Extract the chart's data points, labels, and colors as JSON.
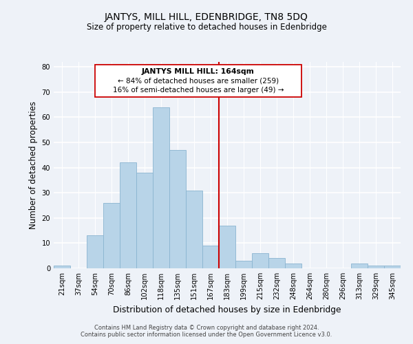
{
  "title": "JANTYS, MILL HILL, EDENBRIDGE, TN8 5DQ",
  "subtitle": "Size of property relative to detached houses in Edenbridge",
  "xlabel": "Distribution of detached houses by size in Edenbridge",
  "ylabel": "Number of detached properties",
  "bar_color": "#b8d4e8",
  "bar_edge_color": "#8ab4d0",
  "background_color": "#eef2f8",
  "grid_color": "#ffffff",
  "categories": [
    "21sqm",
    "37sqm",
    "54sqm",
    "70sqm",
    "86sqm",
    "102sqm",
    "118sqm",
    "135sqm",
    "151sqm",
    "167sqm",
    "183sqm",
    "199sqm",
    "215sqm",
    "232sqm",
    "248sqm",
    "264sqm",
    "280sqm",
    "296sqm",
    "313sqm",
    "329sqm",
    "345sqm"
  ],
  "values": [
    1,
    0,
    13,
    26,
    42,
    38,
    64,
    47,
    31,
    9,
    17,
    3,
    6,
    4,
    2,
    0,
    0,
    0,
    2,
    1,
    1
  ],
  "vline_x": 9.5,
  "vline_color": "#cc0000",
  "annotation_title": "JANTYS MILL HILL: 164sqm",
  "annotation_line1": "← 84% of detached houses are smaller (259)",
  "annotation_line2": "16% of semi-detached houses are larger (49) →",
  "ylim": [
    0,
    82
  ],
  "yticks": [
    0,
    10,
    20,
    30,
    40,
    50,
    60,
    70,
    80
  ],
  "footnote1": "Contains HM Land Registry data © Crown copyright and database right 2024.",
  "footnote2": "Contains public sector information licensed under the Open Government Licence v3.0."
}
